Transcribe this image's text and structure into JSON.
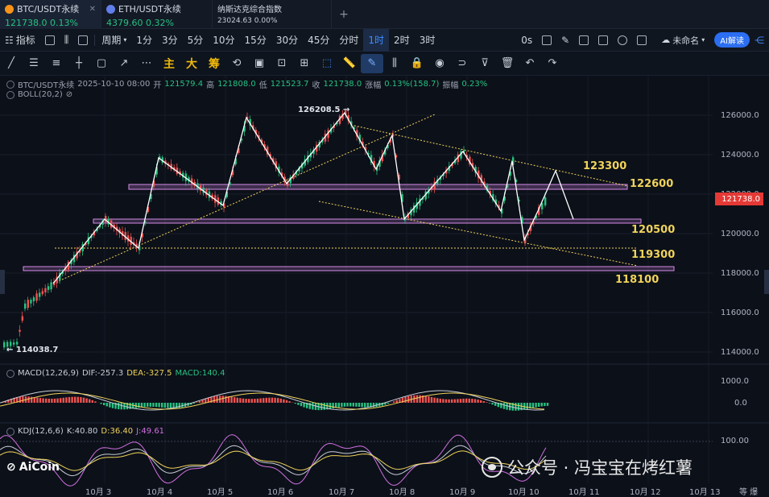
{
  "tabs": [
    {
      "symbol": "BTC/USDT永续",
      "price": "121738.0",
      "change": "0.13%",
      "coin": "btc"
    },
    {
      "symbol": "ETH/USDT永续",
      "price": "4379.60",
      "change": "0.32%",
      "coin": "eth"
    },
    {
      "symbol": "纳斯达克综合指数",
      "price": "23024.63",
      "change": "0.00%"
    }
  ],
  "toolbar": {
    "indicator": "指标",
    "period_label": "周期",
    "intervals": [
      "1分",
      "3分",
      "5分",
      "10分",
      "15分",
      "30分",
      "45分",
      "分时",
      "1时",
      "2时",
      "3时"
    ],
    "active_interval": "1时",
    "seconds": "0s",
    "layout_name": "未命名",
    "ai_button": "AI解读"
  },
  "drawing_tools": {
    "main": "主",
    "large": "大",
    "chip": "筹"
  },
  "ohlc": {
    "symbol": "BTC/USDT永续",
    "time": "2025-10-10 08:00",
    "open_label": "开",
    "open": "121579.4",
    "high_label": "高",
    "high": "121808.0",
    "low_label": "低",
    "low": "121523.7",
    "close_label": "收",
    "close": "121738.0",
    "change_label": "涨幅",
    "change": "0.13%(158.7)",
    "amp_label": "振幅",
    "amp": "0.23%"
  },
  "boll": "BOLL(20,2)",
  "macd": {
    "label": "MACD(12,26,9)",
    "dif": "DIF:-257.3",
    "dea": "DEA:-327.5",
    "macd": "MACD:140.4"
  },
  "kdj": {
    "label": "KDJ(12,6,6)",
    "k": "K:40.80",
    "d": "D:36.40",
    "j": "J:49.61"
  },
  "price_axis": [
    "126000.0",
    "124000.0",
    "122000.0",
    "120000.0",
    "118000.0",
    "116000.0",
    "114000.0"
  ],
  "current_price": "121738.0",
  "macd_axis": [
    "1000.0",
    "0.0"
  ],
  "kdj_axis": [
    "100.00"
  ],
  "dates": [
    "10月 3",
    "10月 4",
    "10月 5",
    "10月 6",
    "10月 7",
    "10月 8",
    "10月 9",
    "10月 10",
    "10月 11",
    "10月 12",
    "10月 13"
  ],
  "levels": [
    "123300",
    "122600",
    "120500",
    "119300",
    "118100"
  ],
  "extremes": {
    "high": "126208.5",
    "low": "114038.7"
  },
  "logo": "AiCoin",
  "watermark": "公众号 · 冯宝宝在烤红薯",
  "corner": "等 爆",
  "colors": {
    "up": "#26c281",
    "down": "#ef5350",
    "level": "#f0d35a",
    "box": "#d58ae6",
    "accent": "#3d8bff"
  }
}
